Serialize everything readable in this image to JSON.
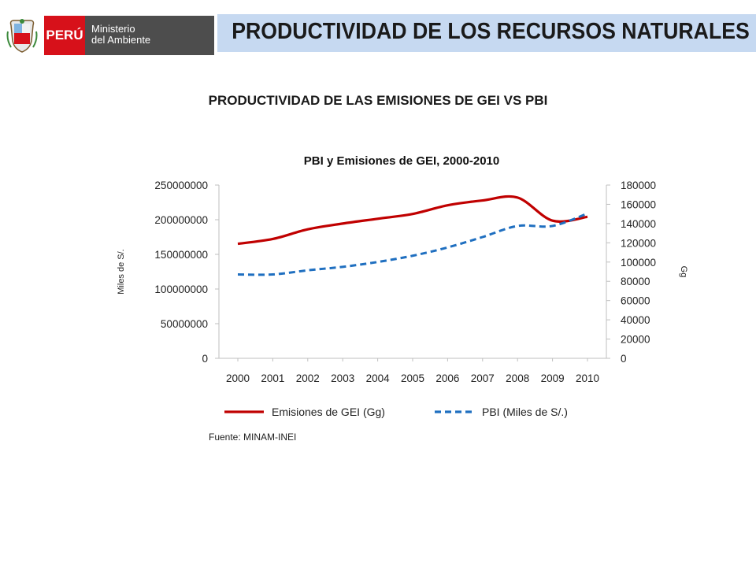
{
  "header": {
    "logo_country": "PERÚ",
    "logo_line1": "Ministerio",
    "logo_line2": "del Ambiente",
    "title": "PRODUCTIVIDAD DE LOS RECURSOS NATURALES"
  },
  "subtitle": "PRODUCTIVIDAD DE LAS EMISIONES DE GEI VS PBI",
  "chart_data": {
    "type": "line",
    "title": "PBI y Emisiones de GEI, 2000-2010",
    "x": [
      "2000",
      "2001",
      "2002",
      "2003",
      "2004",
      "2005",
      "2006",
      "2007",
      "2008",
      "2009",
      "2010"
    ],
    "ylabel_left": "Miles de S/.",
    "ylabel_right": "Gg",
    "ylim_left": [
      0,
      250000000
    ],
    "yticks_left": [
      "0",
      "50000000",
      "100000000",
      "150000000",
      "200000000",
      "250000000"
    ],
    "ylim_right": [
      0,
      180000
    ],
    "yticks_right": [
      "0",
      "20000",
      "40000",
      "60000",
      "80000",
      "100000",
      "120000",
      "140000",
      "160000",
      "180000"
    ],
    "series": [
      {
        "name": "Emisiones de GEI (Gg)",
        "axis": "right",
        "color": "#c00000",
        "style": "solid",
        "values": [
          119000,
          124000,
          134000,
          140000,
          145000,
          150000,
          159000,
          164000,
          167000,
          143000,
          147000
        ]
      },
      {
        "name": "PBI (Miles de S/.)",
        "axis": "left",
        "color": "#1f6fc0",
        "style": "dashed",
        "values": [
          121000000,
          121000000,
          127000000,
          132000000,
          139000000,
          148000000,
          160000000,
          175000000,
          191000000,
          191000000,
          209000000
        ]
      }
    ],
    "legend_position": "bottom",
    "source": "Fuente: MINAM-INEI"
  }
}
